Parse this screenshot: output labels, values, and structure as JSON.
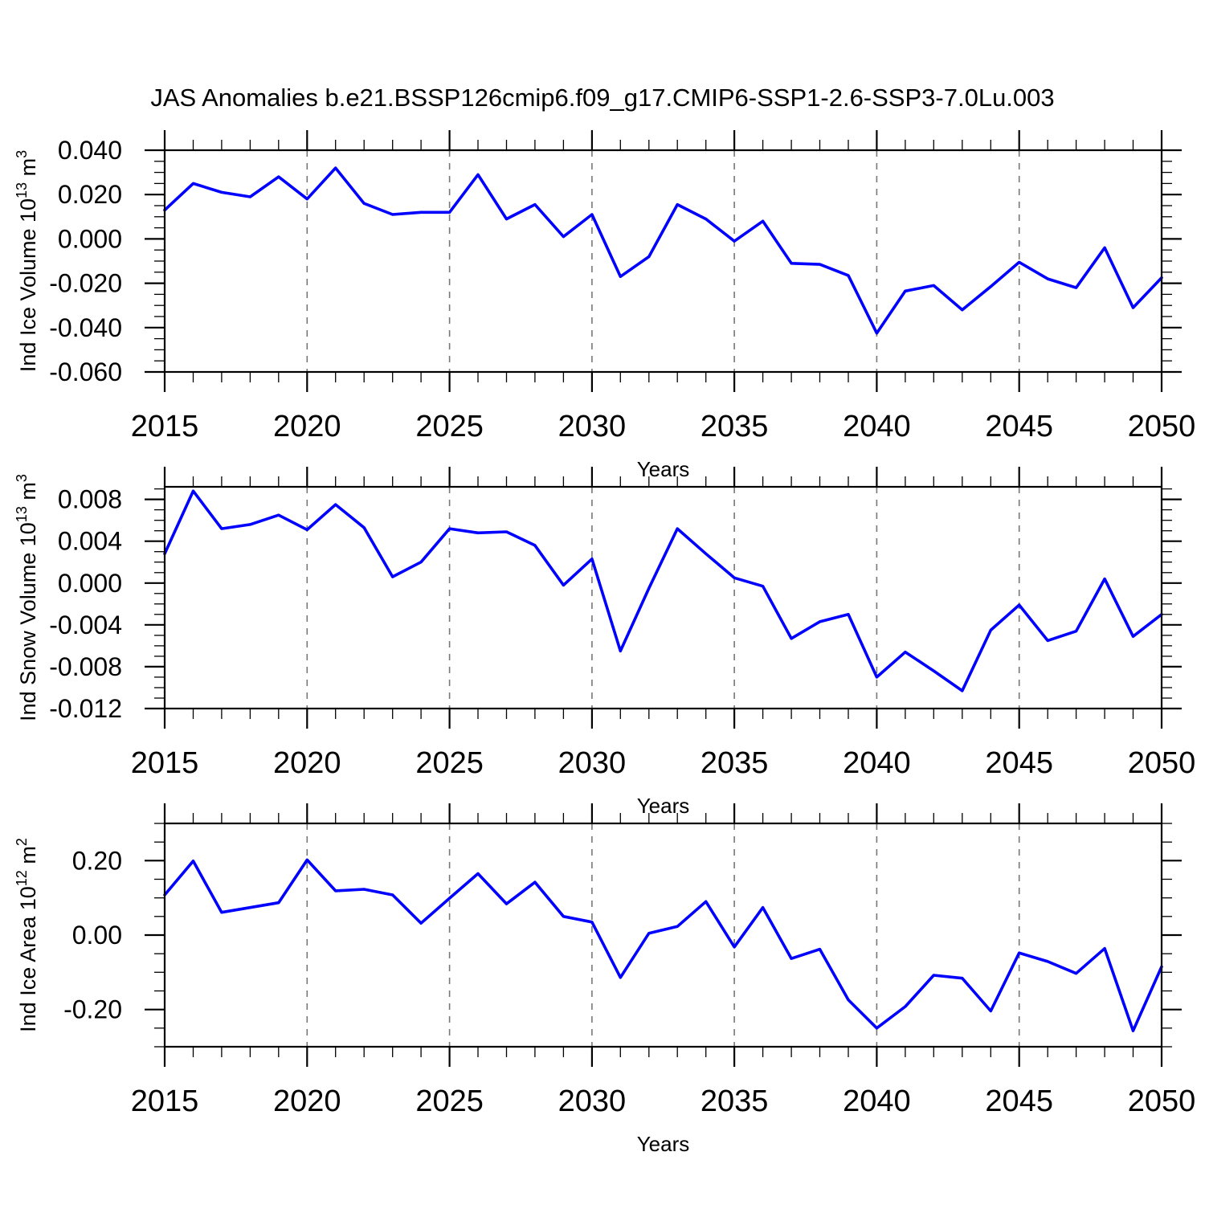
{
  "title": "JAS Anomalies b.e21.BSSP126cmip6.f09_g17.CMIP6-SSP1-2.6-SSP3-7.0Lu.003",
  "colors": {
    "line": "#0000ff",
    "axis": "#000000",
    "grid": "#777777",
    "text": "#000000",
    "background": "#ffffff"
  },
  "x_axis": {
    "label": "Years",
    "range": [
      2015,
      2050
    ],
    "major_ticks": [
      2015,
      2020,
      2025,
      2030,
      2035,
      2040,
      2045,
      2050
    ],
    "tick_labels": [
      "2015",
      "2020",
      "2025",
      "2030",
      "2035",
      "2040",
      "2045",
      "2050"
    ],
    "minor_step": 1,
    "grid_lines": [
      2020,
      2025,
      2030,
      2035,
      2040,
      2045
    ],
    "grid_style": "dashed"
  },
  "chart_data": [
    {
      "type": "line",
      "name": "ind-ice-volume",
      "ylabel_parts": [
        "Ind Ice Volume 10",
        "13",
        " m",
        "3"
      ],
      "ylim": [
        -0.06,
        0.04
      ],
      "ytick_values": [
        0.04,
        0.02,
        0.0,
        -0.02,
        -0.04,
        -0.06
      ],
      "ytick_labels": [
        "0.040",
        "0.020",
        "0.000",
        "-0.020",
        "-0.040",
        "-0.060"
      ],
      "y_minor_step": 0.005,
      "x": [
        2015,
        2016,
        2017,
        2018,
        2019,
        2020,
        2021,
        2022,
        2023,
        2024,
        2025,
        2026,
        2027,
        2028,
        2029,
        2030,
        2031,
        2032,
        2033,
        2034,
        2035,
        2036,
        2037,
        2038,
        2039,
        2040,
        2041,
        2042,
        2043,
        2044,
        2045,
        2046,
        2047,
        2048,
        2049,
        2050
      ],
      "values": [
        0.013,
        0.025,
        0.021,
        0.019,
        0.028,
        0.018,
        0.032,
        0.016,
        0.011,
        0.012,
        0.012,
        0.029,
        0.009,
        0.0155,
        0.001,
        0.011,
        -0.017,
        -0.008,
        0.0155,
        0.009,
        -0.001,
        0.008,
        -0.011,
        -0.0115,
        -0.0165,
        -0.0425,
        -0.0235,
        -0.021,
        -0.032,
        -0.0215,
        -0.0105,
        -0.018,
        -0.022,
        -0.004,
        -0.031,
        -0.0175
      ]
    },
    {
      "type": "line",
      "name": "ind-snow-volume",
      "ylabel_parts": [
        "Ind Snow Volume 10",
        "13",
        " m",
        "3"
      ],
      "ylim": [
        -0.012,
        0.0092
      ],
      "ytick_values": [
        0.008,
        0.004,
        0.0,
        -0.004,
        -0.008,
        -0.012
      ],
      "ytick_labels": [
        "0.008",
        "0.004",
        "0.000",
        "-0.004",
        "-0.008",
        "-0.012"
      ],
      "y_minor_step": 0.001,
      "x": [
        2015,
        2016,
        2017,
        2018,
        2019,
        2020,
        2021,
        2022,
        2023,
        2024,
        2025,
        2026,
        2027,
        2028,
        2029,
        2030,
        2031,
        2032,
        2033,
        2034,
        2035,
        2036,
        2037,
        2038,
        2039,
        2040,
        2041,
        2042,
        2043,
        2044,
        2045,
        2046,
        2047,
        2048,
        2049,
        2050
      ],
      "values": [
        0.0028,
        0.0088,
        0.0052,
        0.0056,
        0.0065,
        0.0051,
        0.0075,
        0.0053,
        0.0006,
        0.002,
        0.0052,
        0.0048,
        0.0049,
        0.0036,
        -0.0002,
        0.0023,
        -0.0065,
        -0.0005,
        0.0052,
        0.0028,
        0.0005,
        -0.0003,
        -0.0053,
        -0.0037,
        -0.003,
        -0.009,
        -0.0066,
        -0.0084,
        -0.0103,
        -0.0045,
        -0.0021,
        -0.0055,
        -0.0046,
        0.0004,
        -0.0051,
        -0.003
      ]
    },
    {
      "type": "line",
      "name": "ind-ice-area",
      "ylabel_parts": [
        "Ind Ice Area 10",
        "12",
        " m",
        "2"
      ],
      "ylim": [
        -0.3,
        0.3
      ],
      "ytick_values": [
        0.2,
        0.0,
        -0.2
      ],
      "ytick_labels": [
        "0.20",
        "0.00",
        "-0.20"
      ],
      "y_minor_step": 0.05,
      "x": [
        2015,
        2016,
        2017,
        2018,
        2019,
        2020,
        2021,
        2022,
        2023,
        2024,
        2025,
        2026,
        2027,
        2028,
        2029,
        2030,
        2031,
        2032,
        2033,
        2034,
        2035,
        2036,
        2037,
        2038,
        2039,
        2040,
        2041,
        2042,
        2043,
        2044,
        2045,
        2046,
        2047,
        2048,
        2049,
        2050
      ],
      "values": [
        0.108,
        0.199,
        0.061,
        0.074,
        0.087,
        0.202,
        0.119,
        0.123,
        0.108,
        0.032,
        0.099,
        0.165,
        0.084,
        0.142,
        0.05,
        0.035,
        -0.114,
        0.005,
        0.023,
        0.09,
        -0.032,
        0.074,
        -0.063,
        -0.038,
        -0.174,
        -0.25,
        -0.192,
        -0.108,
        -0.116,
        -0.204,
        -0.048,
        -0.071,
        -0.103,
        -0.036,
        -0.257,
        -0.085
      ]
    }
  ]
}
